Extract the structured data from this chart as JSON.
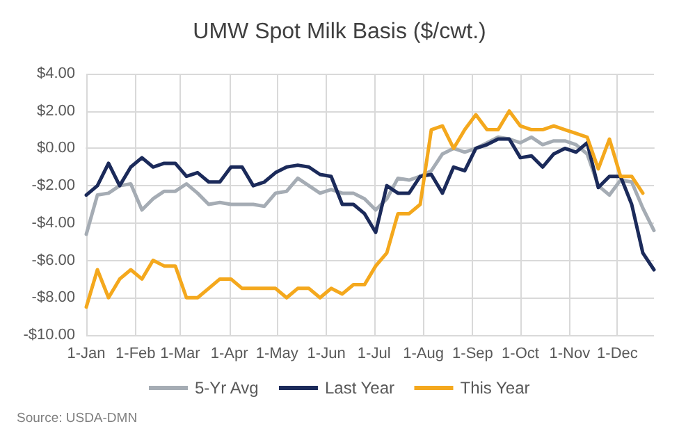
{
  "chart_data": {
    "type": "line",
    "title": "UMW Spot Milk Basis ($/cwt.)",
    "x": [
      "--01-01",
      "--01-08",
      "--01-15",
      "--01-22",
      "--01-29",
      "--02-05",
      "--02-12",
      "--02-19",
      "--02-26",
      "--03-05",
      "--03-12",
      "--03-19",
      "--03-26",
      "--04-02",
      "--04-09",
      "--04-16",
      "--04-23",
      "--04-30",
      "--05-07",
      "--05-14",
      "--05-21",
      "--05-28",
      "--06-04",
      "--06-11",
      "--06-18",
      "--06-25",
      "--07-02",
      "--07-09",
      "--07-16",
      "--07-23",
      "--07-30",
      "--08-06",
      "--08-13",
      "--08-20",
      "--08-27",
      "--09-03",
      "--09-10",
      "--09-17",
      "--09-24",
      "--10-01",
      "--10-08",
      "--10-15",
      "--10-22",
      "--10-29",
      "--11-05",
      "--11-12",
      "--11-19",
      "--11-26",
      "--12-03",
      "--12-10",
      "--12-17",
      "--12-24"
    ],
    "series": [
      {
        "name": "5-Yr Avg",
        "color": "#a5acb4",
        "values": [
          -4.6,
          -2.5,
          -2.4,
          -2.0,
          -1.9,
          -3.3,
          -2.7,
          -2.3,
          -2.3,
          -1.9,
          -2.4,
          -3.0,
          -2.9,
          -3.0,
          -3.0,
          -3.0,
          -3.1,
          -2.4,
          -2.3,
          -1.6,
          -2.0,
          -2.4,
          -2.2,
          -2.4,
          -2.4,
          -2.7,
          -3.3,
          -2.7,
          -1.6,
          -1.7,
          -1.5,
          -1.2,
          -0.3,
          0,
          -0.2,
          0,
          0.3,
          0.6,
          0.5,
          0.3,
          0.6,
          0.2,
          0.4,
          0.4,
          0.2,
          -0.3,
          -2.0,
          -2.5,
          -1.7,
          -1.8,
          -3.2,
          -4.4
        ]
      },
      {
        "name": "Last Year",
        "color": "#1b2a5a",
        "values": [
          -2.5,
          -2.0,
          -0.8,
          -2.0,
          -1.0,
          -0.5,
          -1.0,
          -0.8,
          -0.8,
          -1.5,
          -1.3,
          -1.8,
          -1.8,
          -1.0,
          -1.0,
          -2.0,
          -1.8,
          -1.3,
          -1.0,
          -0.9,
          -1.0,
          -1.4,
          -1.5,
          -3.0,
          -3.0,
          -3.5,
          -4.5,
          -2.0,
          -2.4,
          -2.4,
          -1.5,
          -1.4,
          -2.4,
          -1.0,
          -1.2,
          0,
          0.2,
          0.5,
          0.5,
          -0.5,
          -0.4,
          -1.0,
          -0.3,
          0,
          -0.2,
          0.3,
          -2.1,
          -1.5,
          -1.5,
          -3.0,
          -5.6,
          -6.5
        ]
      },
      {
        "name": "This Year",
        "color": "#f4a81d",
        "values": [
          -8.5,
          -6.5,
          -8.0,
          -7.0,
          -6.5,
          -7.0,
          -6.0,
          -6.3,
          -6.3,
          -8.0,
          -8.0,
          -7.5,
          -7.0,
          -7.0,
          -7.5,
          -7.5,
          -7.5,
          -7.5,
          -8.0,
          -7.5,
          -7.5,
          -8.0,
          -7.5,
          -7.8,
          -7.3,
          -7.3,
          -6.3,
          -5.6,
          -3.5,
          -3.5,
          -3.0,
          1.0,
          1.2,
          0,
          1.0,
          1.8,
          1.0,
          1.0,
          2.0,
          1.2,
          1.0,
          1.0,
          1.2,
          1.0,
          0.8,
          0.6,
          -1.1,
          0.5,
          -1.5,
          -1.5,
          -2.4,
          null
        ]
      }
    ],
    "xlim": [
      "--01-01",
      "--12-24"
    ],
    "xticks": [
      {
        "value": "--01-01",
        "label": "1-Jan"
      },
      {
        "value": "--02-01",
        "label": "1-Feb"
      },
      {
        "value": "--03-01",
        "label": "1-Mar"
      },
      {
        "value": "--04-01",
        "label": "1-Apr"
      },
      {
        "value": "--05-01",
        "label": "1-May"
      },
      {
        "value": "--06-01",
        "label": "1-Jun"
      },
      {
        "value": "--07-01",
        "label": "1-Jul"
      },
      {
        "value": "--08-01",
        "label": "1-Aug"
      },
      {
        "value": "--09-01",
        "label": "1-Sep"
      },
      {
        "value": "--10-01",
        "label": "1-Oct"
      },
      {
        "value": "--11-01",
        "label": "1-Nov"
      },
      {
        "value": "--12-01",
        "label": "1-Dec"
      }
    ],
    "ylim": [
      -10,
      4
    ],
    "yticks": [
      {
        "value": -10,
        "label": "-$10.00"
      },
      {
        "value": -8,
        "label": "-$8.00"
      },
      {
        "value": -6,
        "label": "-$6.00"
      },
      {
        "value": -4,
        "label": "-$4.00"
      },
      {
        "value": -2,
        "label": "-$2.00"
      },
      {
        "value": 0,
        "label": "$0.00"
      },
      {
        "value": 2,
        "label": "$2.00"
      },
      {
        "value": 4,
        "label": "$4.00"
      }
    ],
    "grid": true,
    "legend": "bottom",
    "marker": "none",
    "line_style": "solid",
    "annotations": [
      "Source: USDA-DMN"
    ]
  }
}
